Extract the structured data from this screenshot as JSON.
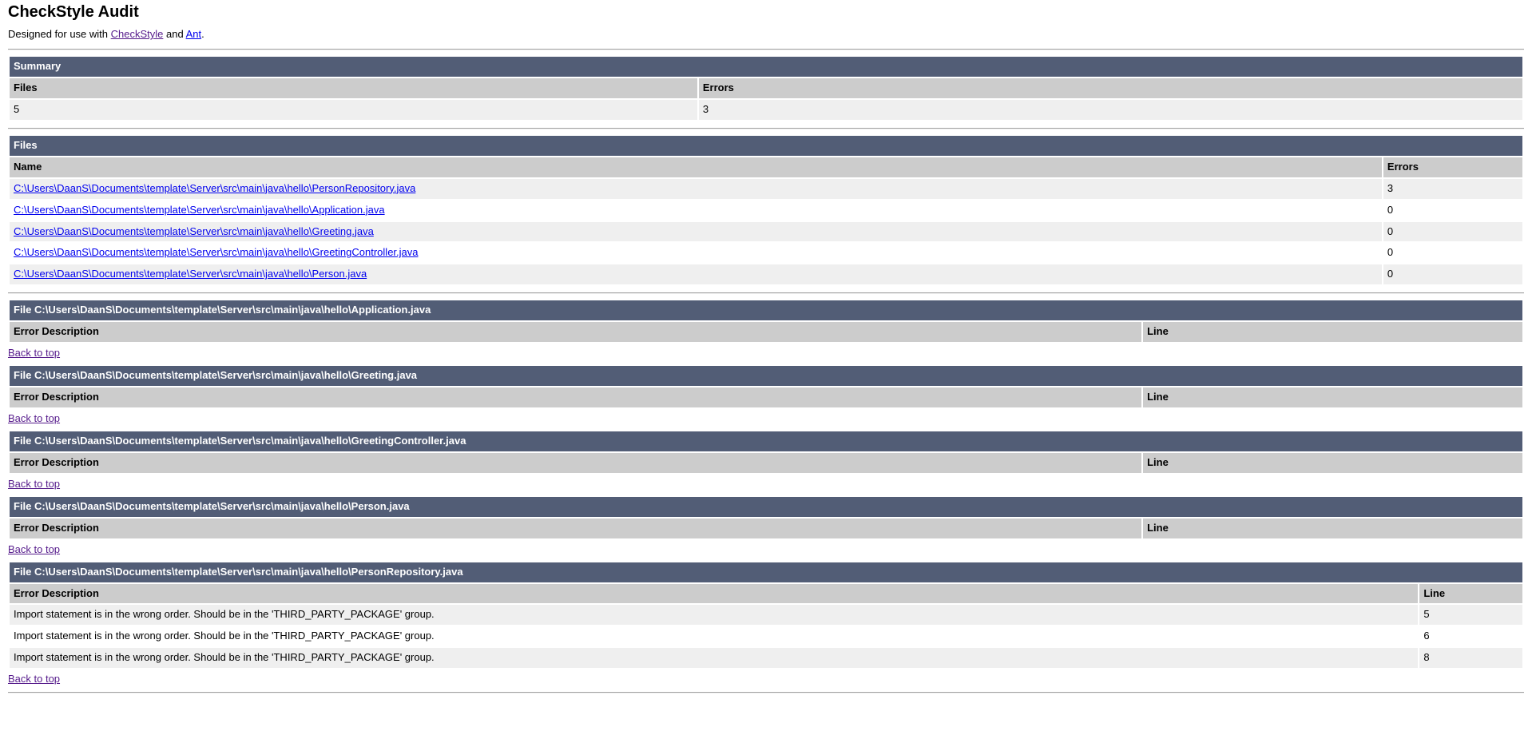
{
  "page": {
    "title": "CheckStyle Audit",
    "subtitle": {
      "prefix": "Designed for use with ",
      "checkstyle_link": "CheckStyle",
      "and": " and ",
      "ant_link": "Ant",
      "suffix": "."
    }
  },
  "summary": {
    "section_title": "Summary",
    "columns": [
      "Files",
      "Errors"
    ],
    "files_count": "5",
    "errors_count": "3"
  },
  "files": {
    "section_title": "Files",
    "columns": [
      "Name",
      "Errors"
    ],
    "rows": [
      {
        "name": "C:\\Users\\DaanS\\Documents\\template\\Server\\src\\main\\java\\hello\\PersonRepository.java",
        "errors": "3"
      },
      {
        "name": "C:\\Users\\DaanS\\Documents\\template\\Server\\src\\main\\java\\hello\\Application.java",
        "errors": "0"
      },
      {
        "name": "C:\\Users\\DaanS\\Documents\\template\\Server\\src\\main\\java\\hello\\Greeting.java",
        "errors": "0"
      },
      {
        "name": "C:\\Users\\DaanS\\Documents\\template\\Server\\src\\main\\java\\hello\\GreetingController.java",
        "errors": "0"
      },
      {
        "name": "C:\\Users\\DaanS\\Documents\\template\\Server\\src\\main\\java\\hello\\Person.java",
        "errors": "0"
      }
    ]
  },
  "file_sections_meta": {
    "title_prefix": "File ",
    "columns": [
      "Error Description",
      "Line"
    ],
    "back_to_top": "Back to top"
  },
  "file_sections": [
    {
      "path": "C:\\Users\\DaanS\\Documents\\template\\Server\\src\\main\\java\\hello\\Application.java",
      "errors": []
    },
    {
      "path": "C:\\Users\\DaanS\\Documents\\template\\Server\\src\\main\\java\\hello\\Greeting.java",
      "errors": []
    },
    {
      "path": "C:\\Users\\DaanS\\Documents\\template\\Server\\src\\main\\java\\hello\\GreetingController.java",
      "errors": []
    },
    {
      "path": "C:\\Users\\DaanS\\Documents\\template\\Server\\src\\main\\java\\hello\\Person.java",
      "errors": []
    },
    {
      "path": "C:\\Users\\DaanS\\Documents\\template\\Server\\src\\main\\java\\hello\\PersonRepository.java",
      "errors": [
        {
          "description": "Import statement is in the wrong order. Should be in the 'THIRD_PARTY_PACKAGE' group.",
          "line": "5"
        },
        {
          "description": "Import statement is in the wrong order. Should be in the 'THIRD_PARTY_PACKAGE' group.",
          "line": "6"
        },
        {
          "description": "Import statement is in the wrong order. Should be in the 'THIRD_PARTY_PACKAGE' group.",
          "line": "8"
        }
      ]
    }
  ],
  "colors": {
    "section_bar_bg": "#525D76",
    "section_bar_text": "#FFFFFF",
    "column_header_bg": "#CCCCCC",
    "row_alt_bg": "#EFEFEF",
    "row_bg": "#FFFFFF",
    "link": "#0000EE",
    "link_visited": "#551A8B"
  }
}
